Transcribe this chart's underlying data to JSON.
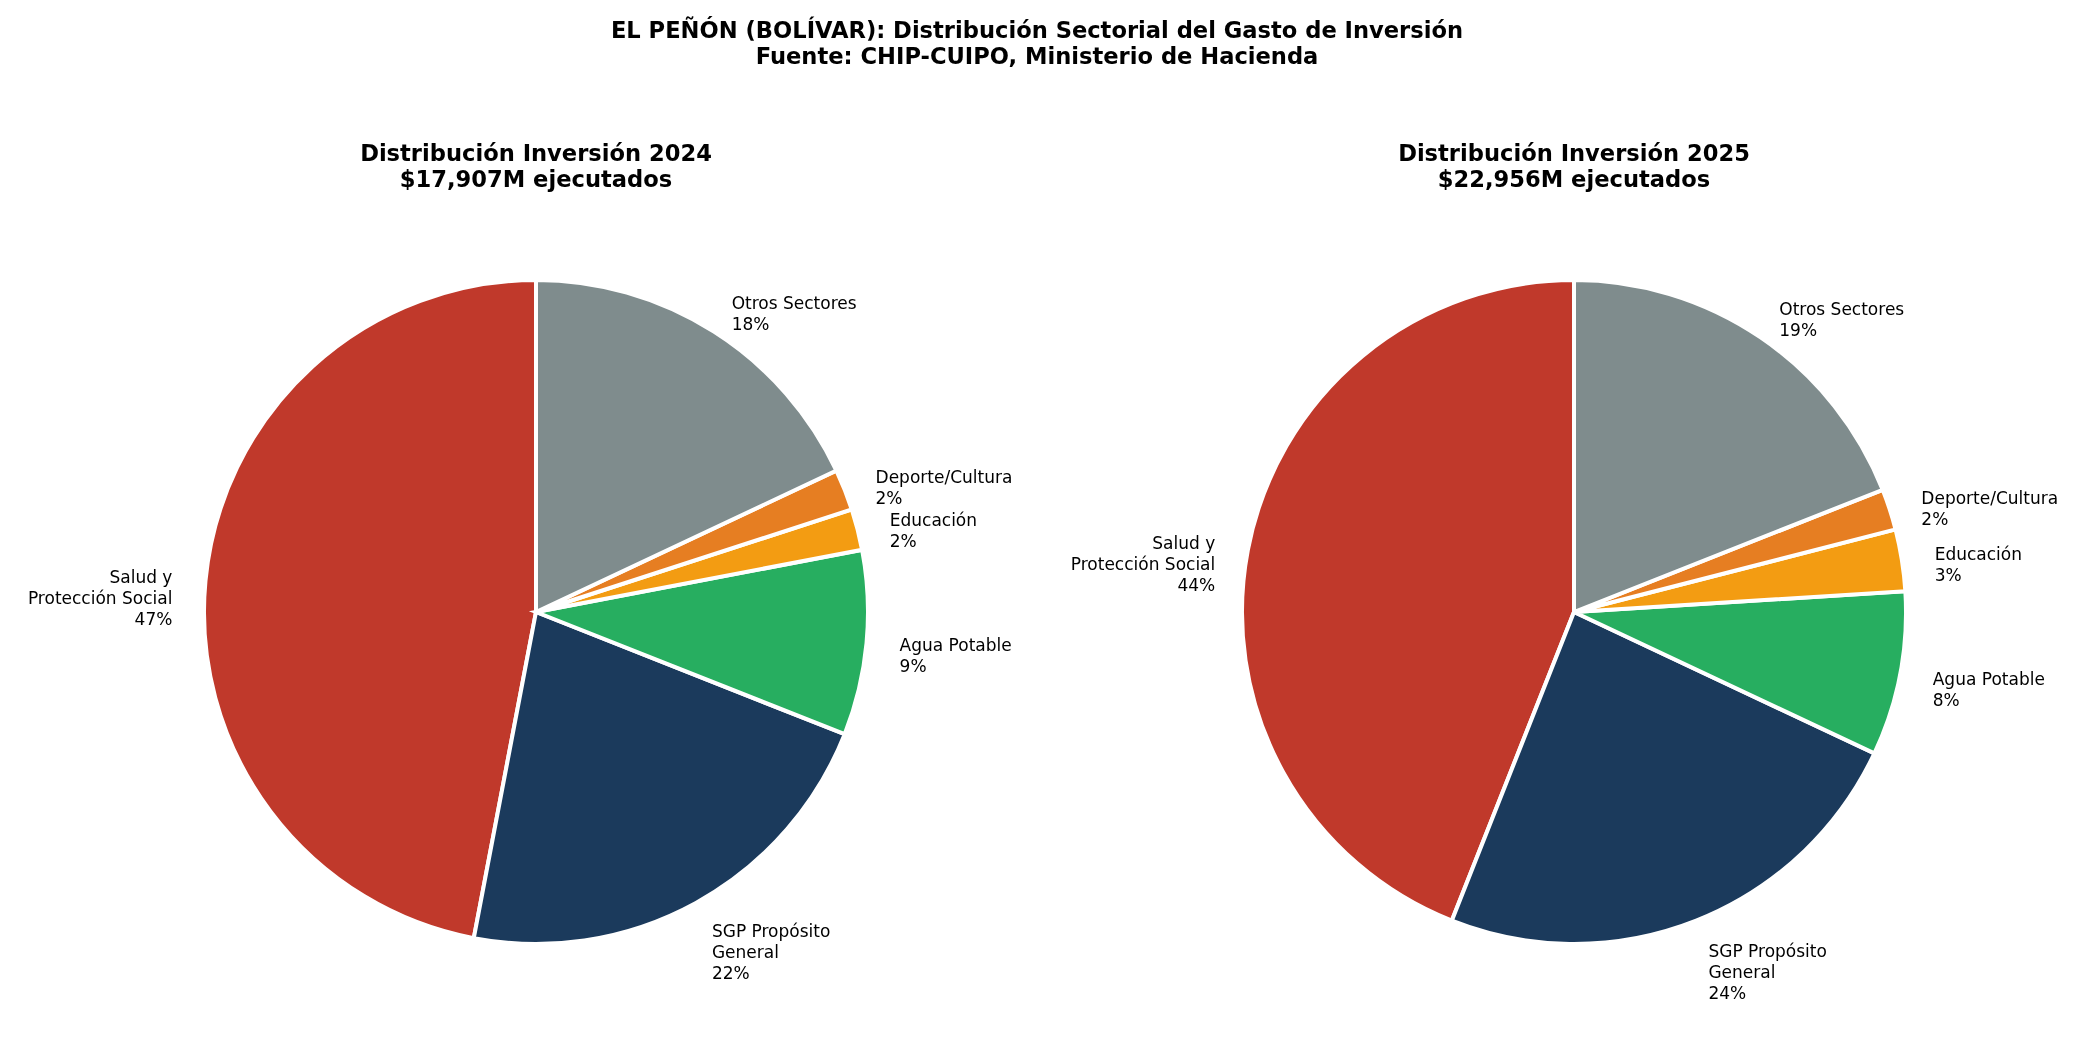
{
  "chart_data": [
    {
      "type": "other",
      "title": "EL PEÑÓN (BOLÍVAR): Distribución Sectorial del Gasto de Inversión",
      "annotations": [
        "Fuente: CHIP-CUIPO, Ministerio de Hacienda"
      ]
    },
    {
      "type": "pie",
      "title": "Distribución Inversión 2024",
      "subtitle": "$17,907M ejecutados",
      "categories": [
        "Salud y\nProtección Social",
        "SGP Propósito\nGeneral",
        "Agua Potable",
        "Educación",
        "Deporte/Cultura",
        "Otros Sectores"
      ],
      "values": [
        47,
        22,
        9,
        2,
        2,
        18
      ],
      "value_labels": [
        "47%",
        "22%",
        "9%",
        "2%",
        "2%",
        "18%"
      ],
      "colors": [
        "#c0392b",
        "#1b3a5c",
        "#27ae60",
        "#f39c12",
        "#e67e22",
        "#7f8c8d"
      ]
    },
    {
      "type": "pie",
      "title": "Distribución Inversión 2025",
      "subtitle": "$22,956M ejecutados",
      "categories": [
        "Salud y\nProtección Social",
        "SGP Propósito\nGeneral",
        "Agua Potable",
        "Educación",
        "Deporte/Cultura",
        "Otros Sectores"
      ],
      "values": [
        44,
        24,
        8,
        3,
        2,
        19
      ],
      "value_labels": [
        "44%",
        "24%",
        "8%",
        "3%",
        "2%",
        "19%"
      ],
      "colors": [
        "#c0392b",
        "#1b3a5c",
        "#27ae60",
        "#f39c12",
        "#e67e22",
        "#7f8c8d"
      ]
    }
  ]
}
